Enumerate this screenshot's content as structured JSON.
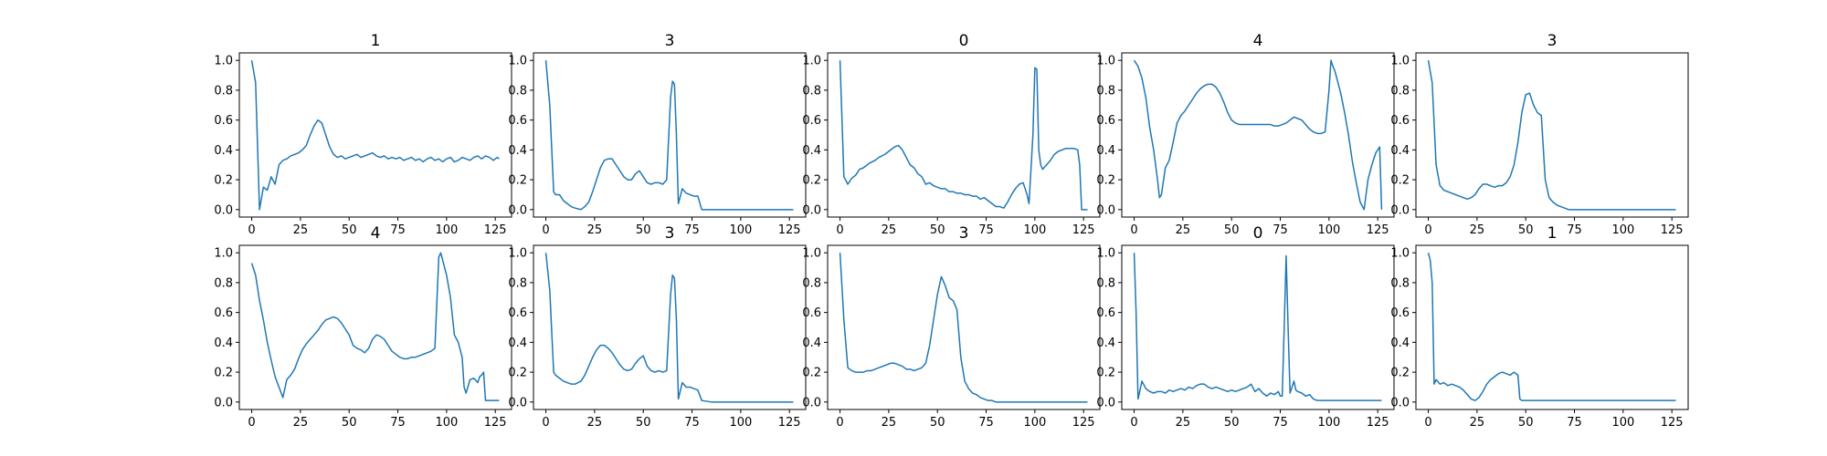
{
  "figure": {
    "line_color": "#1f77b4",
    "frame_color": "#000000"
  },
  "chart_data": [
    {
      "type": "line",
      "title": "1",
      "xlim": [
        -6.35,
        133.35
      ],
      "ylim": [
        -0.05,
        1.05
      ],
      "xticks": [
        0,
        25,
        50,
        75,
        100,
        125
      ],
      "yticks": [
        0.0,
        0.2,
        0.4,
        0.6,
        0.8,
        1.0
      ],
      "x": [
        0,
        2,
        4,
        6,
        8,
        10,
        12,
        14,
        16,
        18,
        20,
        22,
        24,
        26,
        28,
        30,
        32,
        34,
        36,
        38,
        40,
        42,
        44,
        46,
        48,
        50,
        52,
        54,
        56,
        58,
        60,
        62,
        64,
        66,
        68,
        70,
        72,
        74,
        76,
        78,
        80,
        82,
        84,
        86,
        88,
        90,
        92,
        94,
        96,
        98,
        100,
        102,
        104,
        106,
        108,
        110,
        112,
        114,
        116,
        118,
        120,
        122,
        124,
        126,
        127
      ],
      "y": [
        1.0,
        0.85,
        0.0,
        0.15,
        0.13,
        0.22,
        0.17,
        0.3,
        0.33,
        0.34,
        0.36,
        0.37,
        0.38,
        0.4,
        0.43,
        0.5,
        0.56,
        0.6,
        0.58,
        0.5,
        0.42,
        0.37,
        0.35,
        0.36,
        0.34,
        0.35,
        0.36,
        0.37,
        0.35,
        0.36,
        0.37,
        0.38,
        0.36,
        0.35,
        0.36,
        0.34,
        0.35,
        0.34,
        0.35,
        0.33,
        0.34,
        0.35,
        0.33,
        0.34,
        0.32,
        0.34,
        0.35,
        0.33,
        0.34,
        0.32,
        0.34,
        0.35,
        0.32,
        0.33,
        0.35,
        0.34,
        0.33,
        0.35,
        0.36,
        0.34,
        0.36,
        0.35,
        0.33,
        0.35,
        0.34
      ]
    },
    {
      "type": "line",
      "title": "3",
      "xlim": [
        -6.35,
        133.35
      ],
      "ylim": [
        -0.05,
        1.05
      ],
      "xticks": [
        0,
        25,
        50,
        75,
        100,
        125
      ],
      "yticks": [
        0.0,
        0.2,
        0.4,
        0.6,
        0.8,
        1.0
      ],
      "x": [
        0,
        2,
        4,
        5,
        7,
        9,
        11,
        13,
        15,
        18,
        20,
        22,
        24,
        26,
        28,
        30,
        32,
        34,
        36,
        38,
        40,
        42,
        44,
        46,
        48,
        50,
        52,
        54,
        56,
        58,
        60,
        62,
        64,
        65,
        66,
        67,
        68,
        70,
        72,
        74,
        76,
        78,
        80,
        85,
        90,
        100,
        110,
        120,
        127
      ],
      "y": [
        1.0,
        0.7,
        0.12,
        0.1,
        0.1,
        0.06,
        0.04,
        0.02,
        0.01,
        0.0,
        0.02,
        0.05,
        0.12,
        0.2,
        0.28,
        0.33,
        0.34,
        0.34,
        0.3,
        0.26,
        0.22,
        0.2,
        0.2,
        0.24,
        0.26,
        0.22,
        0.18,
        0.17,
        0.18,
        0.18,
        0.17,
        0.2,
        0.75,
        0.86,
        0.84,
        0.5,
        0.04,
        0.14,
        0.11,
        0.1,
        0.09,
        0.09,
        0.0,
        0.0,
        0.0,
        0.0,
        0.0,
        0.0,
        0.0
      ]
    },
    {
      "type": "line",
      "title": "0",
      "xlim": [
        -6.35,
        133.35
      ],
      "ylim": [
        -0.05,
        1.05
      ],
      "xticks": [
        0,
        25,
        50,
        75,
        100,
        125
      ],
      "yticks": [
        0.0,
        0.2,
        0.4,
        0.6,
        0.8,
        1.0
      ],
      "x": [
        0,
        2,
        4,
        6,
        8,
        10,
        12,
        15,
        18,
        20,
        23,
        26,
        28,
        30,
        32,
        34,
        36,
        38,
        40,
        42,
        44,
        46,
        48,
        50,
        52,
        54,
        56,
        58,
        60,
        62,
        64,
        66,
        68,
        70,
        72,
        74,
        76,
        78,
        80,
        82,
        84,
        86,
        88,
        90,
        92,
        94,
        96,
        97,
        99,
        100,
        101,
        102,
        103,
        104,
        106,
        108,
        110,
        112,
        114,
        116,
        118,
        120,
        122,
        123,
        124,
        127
      ],
      "y": [
        1.0,
        0.22,
        0.17,
        0.21,
        0.23,
        0.27,
        0.28,
        0.31,
        0.33,
        0.35,
        0.37,
        0.4,
        0.42,
        0.43,
        0.4,
        0.35,
        0.3,
        0.28,
        0.24,
        0.22,
        0.17,
        0.18,
        0.16,
        0.15,
        0.14,
        0.14,
        0.12,
        0.12,
        0.11,
        0.11,
        0.1,
        0.1,
        0.09,
        0.09,
        0.07,
        0.08,
        0.06,
        0.04,
        0.02,
        0.02,
        0.01,
        0.05,
        0.1,
        0.14,
        0.17,
        0.18,
        0.1,
        0.04,
        0.5,
        0.95,
        0.94,
        0.4,
        0.3,
        0.27,
        0.3,
        0.33,
        0.37,
        0.39,
        0.4,
        0.41,
        0.41,
        0.41,
        0.4,
        0.3,
        0.0,
        0.0
      ]
    },
    {
      "type": "line",
      "title": "4",
      "xlim": [
        -6.35,
        133.35
      ],
      "ylim": [
        -0.05,
        1.05
      ],
      "xticks": [
        0,
        25,
        50,
        75,
        100,
        125
      ],
      "yticks": [
        0.0,
        0.2,
        0.4,
        0.6,
        0.8,
        1.0
      ],
      "x": [
        0,
        2,
        4,
        6,
        8,
        10,
        12,
        13,
        14,
        16,
        18,
        20,
        22,
        24,
        26,
        28,
        30,
        32,
        34,
        36,
        38,
        40,
        42,
        44,
        46,
        48,
        50,
        52,
        54,
        56,
        58,
        60,
        62,
        64,
        66,
        68,
        70,
        72,
        74,
        76,
        78,
        80,
        82,
        84,
        86,
        88,
        90,
        92,
        94,
        96,
        98,
        100,
        101,
        102,
        103,
        104,
        106,
        108,
        110,
        112,
        114,
        116,
        118,
        119,
        120,
        122,
        124,
        126,
        127
      ],
      "y": [
        1.0,
        0.96,
        0.88,
        0.75,
        0.55,
        0.4,
        0.2,
        0.08,
        0.1,
        0.28,
        0.33,
        0.45,
        0.58,
        0.63,
        0.66,
        0.7,
        0.74,
        0.78,
        0.81,
        0.83,
        0.84,
        0.84,
        0.82,
        0.78,
        0.72,
        0.65,
        0.6,
        0.58,
        0.57,
        0.57,
        0.57,
        0.57,
        0.57,
        0.57,
        0.57,
        0.57,
        0.57,
        0.56,
        0.56,
        0.57,
        0.58,
        0.6,
        0.62,
        0.61,
        0.6,
        0.57,
        0.54,
        0.52,
        0.51,
        0.51,
        0.52,
        0.8,
        1.0,
        0.96,
        0.93,
        0.88,
        0.78,
        0.65,
        0.5,
        0.32,
        0.18,
        0.05,
        0.0,
        0.1,
        0.2,
        0.3,
        0.38,
        0.42,
        0.0
      ]
    },
    {
      "type": "line",
      "title": "3",
      "xlim": [
        -6.35,
        133.35
      ],
      "ylim": [
        -0.05,
        1.05
      ],
      "xticks": [
        0,
        25,
        50,
        75,
        100,
        125
      ],
      "yticks": [
        0.0,
        0.2,
        0.4,
        0.6,
        0.8,
        1.0
      ],
      "x": [
        0,
        2,
        4,
        6,
        8,
        10,
        12,
        14,
        16,
        18,
        20,
        22,
        24,
        26,
        28,
        30,
        32,
        34,
        36,
        38,
        40,
        42,
        44,
        46,
        48,
        50,
        52,
        54,
        56,
        58,
        60,
        62,
        64,
        66,
        68,
        70,
        72,
        75,
        80,
        90,
        100,
        110,
        120,
        127
      ],
      "y": [
        1.0,
        0.85,
        0.3,
        0.16,
        0.13,
        0.12,
        0.11,
        0.1,
        0.09,
        0.08,
        0.07,
        0.08,
        0.1,
        0.14,
        0.17,
        0.17,
        0.16,
        0.15,
        0.16,
        0.16,
        0.18,
        0.22,
        0.3,
        0.45,
        0.65,
        0.77,
        0.78,
        0.7,
        0.65,
        0.63,
        0.2,
        0.08,
        0.05,
        0.03,
        0.02,
        0.01,
        0.0,
        0.0,
        0.0,
        0.0,
        0.0,
        0.0,
        0.0,
        0.0
      ]
    },
    {
      "type": "line",
      "title": "4",
      "xlim": [
        -6.35,
        133.35
      ],
      "ylim": [
        -0.05,
        1.05
      ],
      "xticks": [
        0,
        25,
        50,
        75,
        100,
        125
      ],
      "yticks": [
        0.0,
        0.2,
        0.4,
        0.6,
        0.8,
        1.0
      ],
      "x": [
        0,
        2,
        4,
        6,
        8,
        10,
        12,
        14,
        16,
        18,
        20,
        22,
        24,
        26,
        28,
        30,
        32,
        34,
        36,
        38,
        40,
        42,
        44,
        46,
        48,
        50,
        52,
        54,
        56,
        58,
        60,
        62,
        64,
        66,
        68,
        70,
        72,
        74,
        76,
        78,
        80,
        82,
        84,
        86,
        88,
        90,
        92,
        94,
        96,
        97,
        98,
        100,
        102,
        104,
        106,
        108,
        109,
        110,
        112,
        114,
        116,
        117,
        118,
        119,
        120,
        121,
        122,
        127
      ],
      "y": [
        0.93,
        0.85,
        0.68,
        0.55,
        0.4,
        0.28,
        0.17,
        0.1,
        0.03,
        0.15,
        0.18,
        0.22,
        0.29,
        0.35,
        0.39,
        0.42,
        0.45,
        0.48,
        0.52,
        0.55,
        0.56,
        0.57,
        0.56,
        0.53,
        0.49,
        0.45,
        0.38,
        0.36,
        0.35,
        0.33,
        0.36,
        0.42,
        0.45,
        0.44,
        0.42,
        0.38,
        0.34,
        0.32,
        0.3,
        0.29,
        0.29,
        0.3,
        0.3,
        0.31,
        0.32,
        0.33,
        0.34,
        0.36,
        0.97,
        1.0,
        0.95,
        0.85,
        0.7,
        0.45,
        0.4,
        0.3,
        0.1,
        0.06,
        0.15,
        0.16,
        0.13,
        0.17,
        0.18,
        0.2,
        0.01,
        0.01,
        0.01,
        0.01
      ]
    },
    {
      "type": "line",
      "title": "3",
      "xlim": [
        -6.35,
        133.35
      ],
      "ylim": [
        -0.05,
        1.05
      ],
      "xticks": [
        0,
        25,
        50,
        75,
        100,
        125
      ],
      "yticks": [
        0.0,
        0.2,
        0.4,
        0.6,
        0.8,
        1.0
      ],
      "x": [
        0,
        2,
        4,
        5,
        7,
        9,
        11,
        13,
        15,
        18,
        20,
        22,
        24,
        26,
        28,
        30,
        32,
        34,
        36,
        38,
        40,
        42,
        44,
        46,
        48,
        50,
        52,
        54,
        56,
        58,
        60,
        62,
        64,
        65,
        66,
        67,
        68,
        70,
        72,
        74,
        76,
        78,
        80,
        85,
        90,
        100,
        110,
        120,
        127
      ],
      "y": [
        1.0,
        0.75,
        0.2,
        0.18,
        0.16,
        0.14,
        0.13,
        0.12,
        0.12,
        0.14,
        0.18,
        0.24,
        0.3,
        0.35,
        0.38,
        0.38,
        0.36,
        0.33,
        0.29,
        0.25,
        0.22,
        0.21,
        0.22,
        0.26,
        0.29,
        0.31,
        0.24,
        0.21,
        0.2,
        0.21,
        0.2,
        0.21,
        0.72,
        0.85,
        0.83,
        0.55,
        0.02,
        0.13,
        0.1,
        0.1,
        0.09,
        0.08,
        0.01,
        0.0,
        0.0,
        0.0,
        0.0,
        0.0,
        0.0
      ]
    },
    {
      "type": "line",
      "title": "3",
      "xlim": [
        -6.35,
        133.35
      ],
      "ylim": [
        -0.05,
        1.05
      ],
      "xticks": [
        0,
        25,
        50,
        75,
        100,
        125
      ],
      "yticks": [
        0.0,
        0.2,
        0.4,
        0.6,
        0.8,
        1.0
      ],
      "x": [
        0,
        2,
        4,
        6,
        8,
        10,
        12,
        14,
        16,
        18,
        20,
        22,
        24,
        26,
        28,
        30,
        32,
        34,
        36,
        38,
        40,
        42,
        44,
        46,
        48,
        50,
        52,
        54,
        56,
        58,
        60,
        62,
        64,
        66,
        68,
        70,
        72,
        74,
        76,
        78,
        80,
        85,
        90,
        100,
        110,
        120,
        127
      ],
      "y": [
        1.0,
        0.55,
        0.23,
        0.21,
        0.2,
        0.2,
        0.2,
        0.21,
        0.21,
        0.22,
        0.23,
        0.24,
        0.25,
        0.26,
        0.26,
        0.25,
        0.24,
        0.22,
        0.22,
        0.21,
        0.22,
        0.23,
        0.26,
        0.38,
        0.55,
        0.72,
        0.84,
        0.78,
        0.7,
        0.68,
        0.62,
        0.3,
        0.14,
        0.09,
        0.06,
        0.05,
        0.03,
        0.02,
        0.01,
        0.01,
        0.0,
        0.0,
        0.0,
        0.0,
        0.0,
        0.0,
        0.0
      ]
    },
    {
      "type": "line",
      "title": "0",
      "xlim": [
        -6.35,
        133.35
      ],
      "ylim": [
        -0.05,
        1.05
      ],
      "xticks": [
        0,
        25,
        50,
        75,
        100,
        125
      ],
      "yticks": [
        0.0,
        0.2,
        0.4,
        0.6,
        0.8,
        1.0
      ],
      "x": [
        0,
        1,
        2,
        4,
        6,
        8,
        10,
        12,
        14,
        16,
        18,
        20,
        22,
        24,
        26,
        28,
        30,
        32,
        34,
        36,
        38,
        40,
        42,
        44,
        46,
        48,
        50,
        52,
        54,
        56,
        58,
        60,
        62,
        64,
        66,
        68,
        70,
        72,
        74,
        75,
        76,
        77,
        78,
        79,
        80,
        81,
        82,
        83,
        84,
        86,
        88,
        90,
        92,
        94,
        96,
        98,
        100,
        110,
        120,
        127
      ],
      "y": [
        1.0,
        0.6,
        0.02,
        0.14,
        0.09,
        0.07,
        0.06,
        0.07,
        0.07,
        0.06,
        0.08,
        0.07,
        0.08,
        0.09,
        0.08,
        0.1,
        0.09,
        0.11,
        0.12,
        0.12,
        0.1,
        0.09,
        0.1,
        0.09,
        0.08,
        0.07,
        0.08,
        0.07,
        0.08,
        0.09,
        0.1,
        0.12,
        0.07,
        0.09,
        0.06,
        0.04,
        0.06,
        0.05,
        0.07,
        0.04,
        0.04,
        0.5,
        0.98,
        0.5,
        0.06,
        0.1,
        0.14,
        0.08,
        0.07,
        0.06,
        0.04,
        0.05,
        0.02,
        0.01,
        0.01,
        0.01,
        0.01,
        0.01,
        0.01,
        0.01
      ]
    },
    {
      "type": "line",
      "title": "1",
      "xlim": [
        -6.35,
        133.35
      ],
      "ylim": [
        -0.05,
        1.05
      ],
      "xticks": [
        0,
        25,
        50,
        75,
        100,
        125
      ],
      "yticks": [
        0.0,
        0.2,
        0.4,
        0.6,
        0.8,
        1.0
      ],
      "x": [
        0,
        1,
        2,
        3,
        4,
        6,
        8,
        10,
        12,
        14,
        16,
        18,
        20,
        22,
        24,
        26,
        28,
        30,
        32,
        34,
        36,
        38,
        40,
        42,
        44,
        46,
        47,
        48,
        50,
        60,
        70,
        80,
        90,
        100,
        110,
        120,
        127
      ],
      "y": [
        1.0,
        0.95,
        0.8,
        0.12,
        0.15,
        0.12,
        0.13,
        0.11,
        0.12,
        0.11,
        0.1,
        0.08,
        0.05,
        0.02,
        0.01,
        0.03,
        0.07,
        0.12,
        0.15,
        0.17,
        0.19,
        0.2,
        0.19,
        0.18,
        0.2,
        0.18,
        0.02,
        0.01,
        0.01,
        0.01,
        0.01,
        0.01,
        0.01,
        0.01,
        0.01,
        0.01,
        0.01
      ]
    }
  ]
}
